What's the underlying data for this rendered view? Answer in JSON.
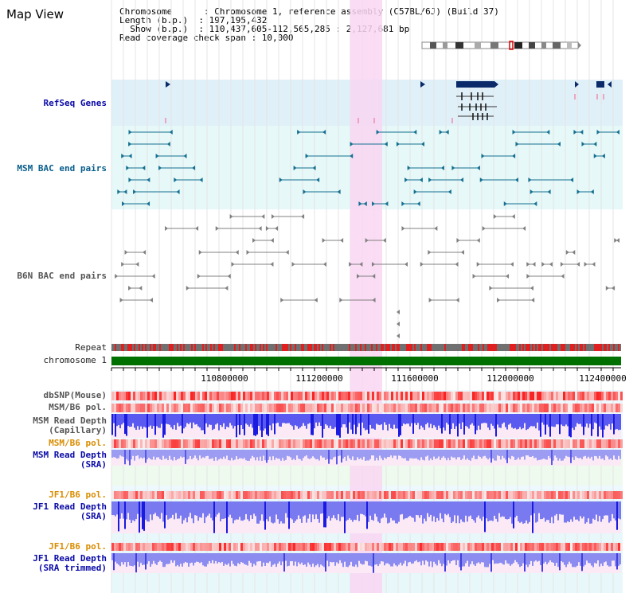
{
  "title": "Map View",
  "info": {
    "line1": "Chromosome      : Chromosome 1, reference assembly (C57BL/6J) (Build 37)",
    "line2": "Length (b.p.)  : 197,195,432",
    "line3": "  Show (b.p.)  : 110,437,605-112,565,285 : 2,127,681 bp",
    "line4": "Read coverage check span : 10,000"
  },
  "tracks": {
    "refseq": "RefSeq Genes",
    "msm_bac": "MSM BAC end pairs",
    "b6n_bac": "B6N BAC end pairs",
    "repeat": "Repeat",
    "chromosome": "chromosome 1",
    "dbsnp": "dbSNP(Mouse)",
    "msm_b6_pol_1": "MSM/B6 pol.",
    "msm_read_depth_cap_1": "MSM Read Depth",
    "msm_read_depth_cap_2": "(Capillary)",
    "msm_b6_pol_2": "MSM/B6 pol.",
    "msm_read_depth_sra_1": "MSM Read Depth",
    "msm_read_depth_sra_2": "(SRA)",
    "jf1_b6_pol_1": "JF1/B6 pol.",
    "jf1_read_depth_1": "JF1 Read Depth",
    "jf1_read_depth_2": "(SRA)",
    "jf1_b6_pol_2": "JF1/B6 pol.",
    "jf1_read_depth_trim_1": "JF1 Read Depth",
    "jf1_read_depth_trim_2": "(SRA trimmed)"
  },
  "axis": {
    "ticks": [
      "110800000",
      "111200000",
      "111600000",
      "112000000",
      "112400000"
    ]
  },
  "colors": {
    "highlight": "#f9d6f2",
    "refseq_bg": "#dff0f8",
    "msm_bg": "#e6f8f8",
    "gene": "#0a2a6a",
    "msm_feature": "#147090",
    "b6n_feature": "#808080",
    "chromosome_bar": "#007000",
    "depth_blue": "#2828e8",
    "depth_light": "#8c8cf0"
  }
}
